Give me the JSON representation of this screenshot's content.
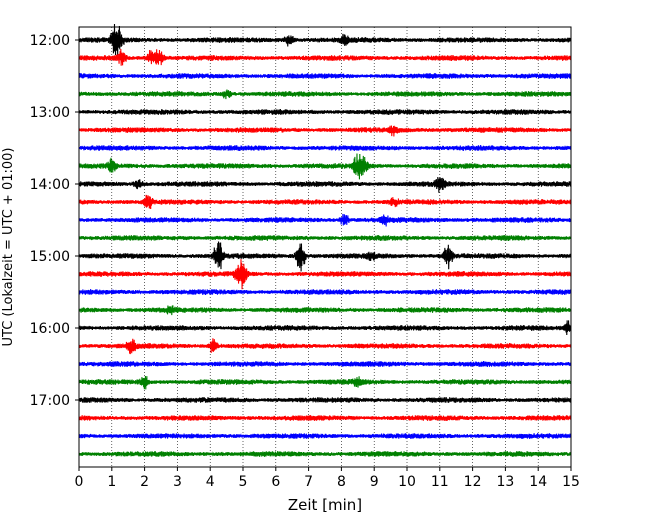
{
  "chart_data": {
    "type": "line",
    "title": "",
    "xlabel": "Zeit  [min]",
    "ylabel": "UTC (Lokalzeit = UTC + 01:00)",
    "xlim": [
      0,
      15
    ],
    "x_ticks": [
      0,
      1,
      2,
      3,
      4,
      5,
      6,
      7,
      8,
      9,
      10,
      11,
      12,
      13,
      14,
      15
    ],
    "y_ticks": [
      "12:00",
      "13:00",
      "14:00",
      "15:00",
      "16:00",
      "17:00"
    ],
    "grid": "vertical dotted",
    "trace_interval_min": 15,
    "color_cycle": [
      "#000000",
      "#ff0000",
      "#0000ff",
      "#008000"
    ],
    "rows": [
      {
        "start": "12:00",
        "color": "#000000",
        "events": [
          [
            1.1,
            3.0
          ],
          [
            1.25,
            1.6
          ],
          [
            6.4,
            1.2
          ],
          [
            8.1,
            1.1
          ]
        ]
      },
      {
        "start": "12:15",
        "color": "#ff0000",
        "events": [
          [
            1.3,
            1.5
          ],
          [
            2.2,
            1.6
          ],
          [
            2.45,
            2.0
          ]
        ]
      },
      {
        "start": "12:30",
        "color": "#0000ff",
        "events": []
      },
      {
        "start": "12:45",
        "color": "#008000",
        "events": [
          [
            4.5,
            0.9
          ]
        ]
      },
      {
        "start": "13:00",
        "color": "#000000",
        "events": []
      },
      {
        "start": "13:15",
        "color": "#ff0000",
        "events": [
          [
            9.6,
            1.0
          ]
        ]
      },
      {
        "start": "13:30",
        "color": "#0000ff",
        "events": []
      },
      {
        "start": "13:45",
        "color": "#008000",
        "events": [
          [
            1.0,
            1.4
          ],
          [
            8.5,
            2.8
          ],
          [
            8.7,
            1.8
          ]
        ]
      },
      {
        "start": "14:00",
        "color": "#000000",
        "events": [
          [
            1.8,
            0.9
          ],
          [
            11.0,
            1.8
          ]
        ]
      },
      {
        "start": "14:15",
        "color": "#ff0000",
        "events": [
          [
            2.1,
            1.8
          ],
          [
            9.6,
            1.0
          ]
        ]
      },
      {
        "start": "14:30",
        "color": "#0000ff",
        "events": [
          [
            8.1,
            1.2
          ],
          [
            9.3,
            1.1
          ]
        ]
      },
      {
        "start": "14:45",
        "color": "#008000",
        "events": []
      },
      {
        "start": "15:00",
        "color": "#000000",
        "events": [
          [
            4.25,
            3.8
          ],
          [
            6.75,
            4.0
          ],
          [
            11.25,
            2.6
          ],
          [
            8.9,
            0.9
          ]
        ]
      },
      {
        "start": "15:15",
        "color": "#ff0000",
        "events": [
          [
            4.9,
            2.6
          ],
          [
            5.0,
            2.0
          ]
        ]
      },
      {
        "start": "15:30",
        "color": "#0000ff",
        "events": []
      },
      {
        "start": "15:45",
        "color": "#008000",
        "events": [
          [
            2.8,
            0.9
          ]
        ]
      },
      {
        "start": "16:00",
        "color": "#000000",
        "events": [
          [
            14.9,
            1.2
          ]
        ]
      },
      {
        "start": "16:15",
        "color": "#ff0000",
        "events": [
          [
            1.6,
            1.6
          ],
          [
            4.1,
            1.5
          ]
        ]
      },
      {
        "start": "16:30",
        "color": "#0000ff",
        "events": []
      },
      {
        "start": "16:45",
        "color": "#008000",
        "events": [
          [
            2.0,
            1.4
          ],
          [
            8.5,
            1.0
          ]
        ]
      },
      {
        "start": "17:00",
        "color": "#000000",
        "events": []
      },
      {
        "start": "17:15",
        "color": "#ff0000",
        "events": []
      },
      {
        "start": "17:30",
        "color": "#0000ff",
        "events": []
      },
      {
        "start": "17:45",
        "color": "#008000",
        "events": []
      }
    ]
  }
}
